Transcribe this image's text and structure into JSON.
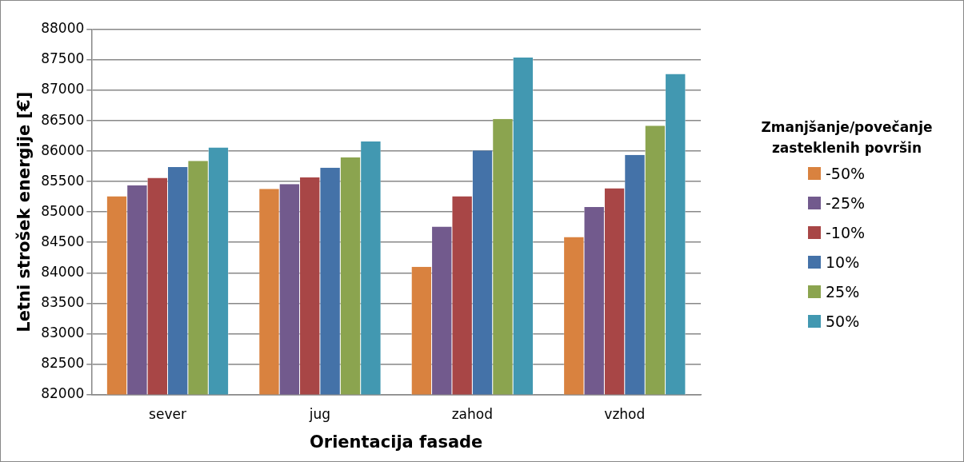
{
  "chart_data": {
    "type": "bar",
    "xlabel": "Orientacija fasade",
    "ylabel": "Letni strošek energije [€]",
    "legend_title": "Zmanjšanje/povečanje zasteklenih površin",
    "categories": [
      "sever",
      "jug",
      "zahod",
      "vzhod"
    ],
    "series": [
      {
        "name": "-50%",
        "color": "#d9823f",
        "values": [
          85260,
          85380,
          84100,
          84590
        ]
      },
      {
        "name": "-25%",
        "color": "#725a8d",
        "values": [
          85440,
          85460,
          84760,
          85080
        ]
      },
      {
        "name": "-10%",
        "color": "#a84646",
        "values": [
          85560,
          85570,
          85260,
          85390
        ]
      },
      {
        "name": "10%",
        "color": "#4472a8",
        "values": [
          85740,
          85730,
          86010,
          85940
        ]
      },
      {
        "name": "25%",
        "color": "#8ba44f",
        "values": [
          85840,
          85900,
          86530,
          86420
        ]
      },
      {
        "name": "50%",
        "color": "#4298b1",
        "values": [
          86060,
          86160,
          87540,
          87270
        ]
      }
    ],
    "ylim": [
      82000,
      88000
    ],
    "yticks": [
      82000,
      82500,
      83000,
      83500,
      84000,
      84500,
      85000,
      85500,
      86000,
      86500,
      87000,
      87500,
      88000
    ],
    "grid": "y",
    "legend": "right"
  }
}
